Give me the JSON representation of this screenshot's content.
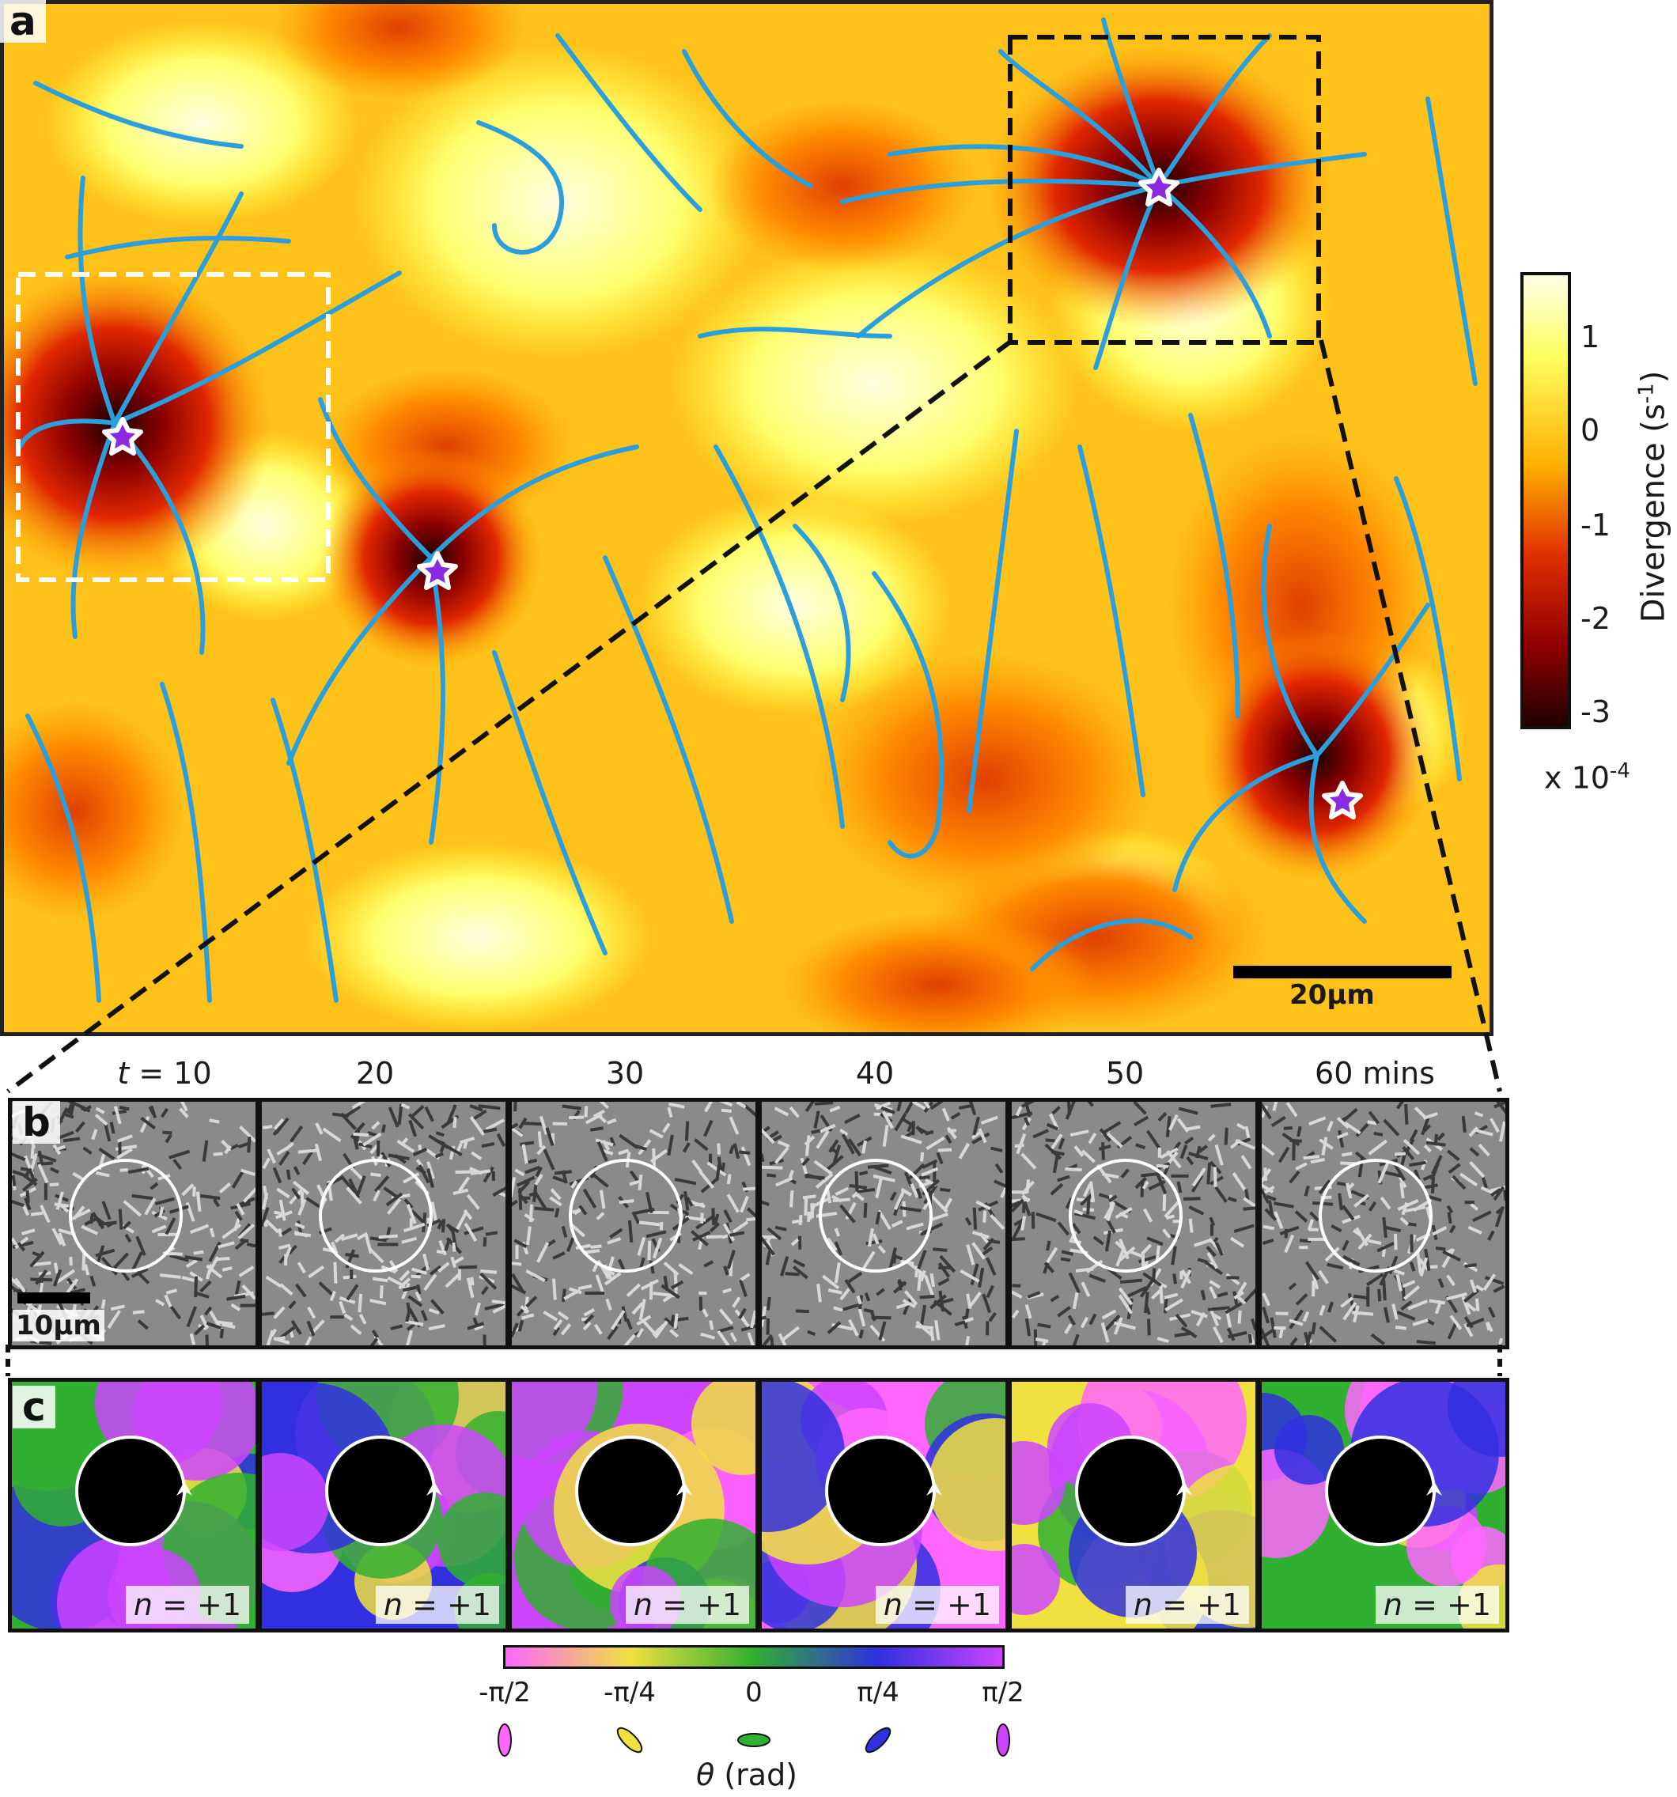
{
  "panel_a": {
    "letter": "a",
    "colorbar_label": "Divergence (s",
    "colorbar_label_sup": "-1",
    "colorbar_label_end": ")",
    "colorbar_ticks": [
      "1",
      "0",
      "-1",
      "-2",
      "-3"
    ],
    "colorbar_exponent_text": "x 10",
    "colorbar_exponent_sup": "-4",
    "scale_bar": "20µm"
  },
  "panel_b": {
    "letter": "b",
    "time_prefix": "t",
    "time_labels": [
      " = 10",
      "20",
      "30",
      "40",
      "50",
      "60 mins"
    ],
    "scale_bar": "10µm"
  },
  "panel_c": {
    "letter": "c",
    "n_var": "n",
    "n_value": " = +1",
    "theta_ticks": [
      "-π/2",
      "-π/4",
      "0",
      "π/4",
      "π/2"
    ],
    "theta_axis_var": "θ",
    "theta_axis_unit": " (rad)"
  },
  "colors": {
    "streamline": "#2b9fdc",
    "star_fill": "#8a2be2",
    "colorbar_stops": [
      "#ffffe8",
      "#ffff60",
      "#ffb000",
      "#e03000",
      "#900000",
      "#200000"
    ],
    "theta_stops": [
      "#ff66ff",
      "#f0e040",
      "#30b030",
      "#3030e0",
      "#cc44ff"
    ]
  }
}
